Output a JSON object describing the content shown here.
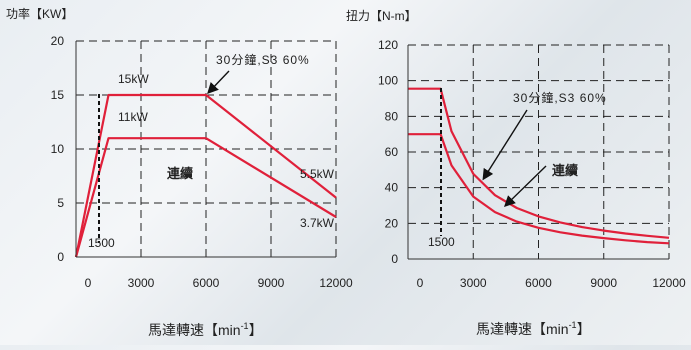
{
  "chart_data": [
    {
      "type": "line",
      "ylabel": "功率【KW】",
      "xlabel": "馬達轉速【min",
      "xlabel_sup": "-1",
      "xlabel_close": "】",
      "xlim": [
        0,
        12000
      ],
      "ylim": [
        0,
        20
      ],
      "xticks": [
        0,
        3000,
        6000,
        9000,
        12000
      ],
      "yticks": [
        0,
        5,
        10,
        15,
        20
      ],
      "grid": true,
      "series": [
        {
          "name": "30分鐘,S3 60%",
          "x": [
            0,
            1500,
            6000,
            12000
          ],
          "y": [
            0,
            15,
            15,
            5.5
          ]
        },
        {
          "name": "連續",
          "x": [
            0,
            1500,
            6000,
            12000
          ],
          "y": [
            0,
            11,
            11,
            3.7
          ]
        }
      ],
      "annotations": {
        "s3_label": "30分鐘,S3 60%",
        "cont_label": "連續",
        "peak_15": "15kW",
        "peak_11": "11kW",
        "end_55": "5.5kW",
        "end_37": "3.7kW",
        "base_speed": "1500"
      }
    },
    {
      "type": "line",
      "ylabel": "扭力【N-m】",
      "xlabel": "馬達轉速【min",
      "xlabel_sup": "-1",
      "xlabel_close": "】",
      "xlim": [
        0,
        12000
      ],
      "ylim": [
        0,
        120
      ],
      "xticks": [
        0,
        3000,
        6000,
        9000,
        12000
      ],
      "yticks": [
        0,
        20,
        40,
        60,
        80,
        100,
        120
      ],
      "grid": true,
      "series": [
        {
          "name": "30分鐘,S3 60%",
          "x": [
            0,
            1500,
            2000,
            3000,
            4000,
            5000,
            6000,
            7000,
            8000,
            9000,
            10000,
            11000,
            12000
          ],
          "y": [
            95.5,
            95.5,
            71.6,
            47.7,
            35.8,
            28.6,
            23.9,
            20.5,
            17.9,
            15.9,
            14.3,
            13.0,
            11.9
          ]
        },
        {
          "name": "連續",
          "x": [
            0,
            1500,
            2000,
            3000,
            4000,
            5000,
            6000,
            7000,
            8000,
            9000,
            10000,
            11000,
            12000
          ],
          "y": [
            70,
            70,
            52.5,
            35.0,
            26.3,
            21.0,
            17.5,
            15.0,
            13.1,
            11.7,
            10.5,
            9.5,
            8.8
          ]
        }
      ],
      "annotations": {
        "s3_label": "30分鐘,S3 60%",
        "cont_label": "連續",
        "base_speed": "1500"
      }
    }
  ]
}
